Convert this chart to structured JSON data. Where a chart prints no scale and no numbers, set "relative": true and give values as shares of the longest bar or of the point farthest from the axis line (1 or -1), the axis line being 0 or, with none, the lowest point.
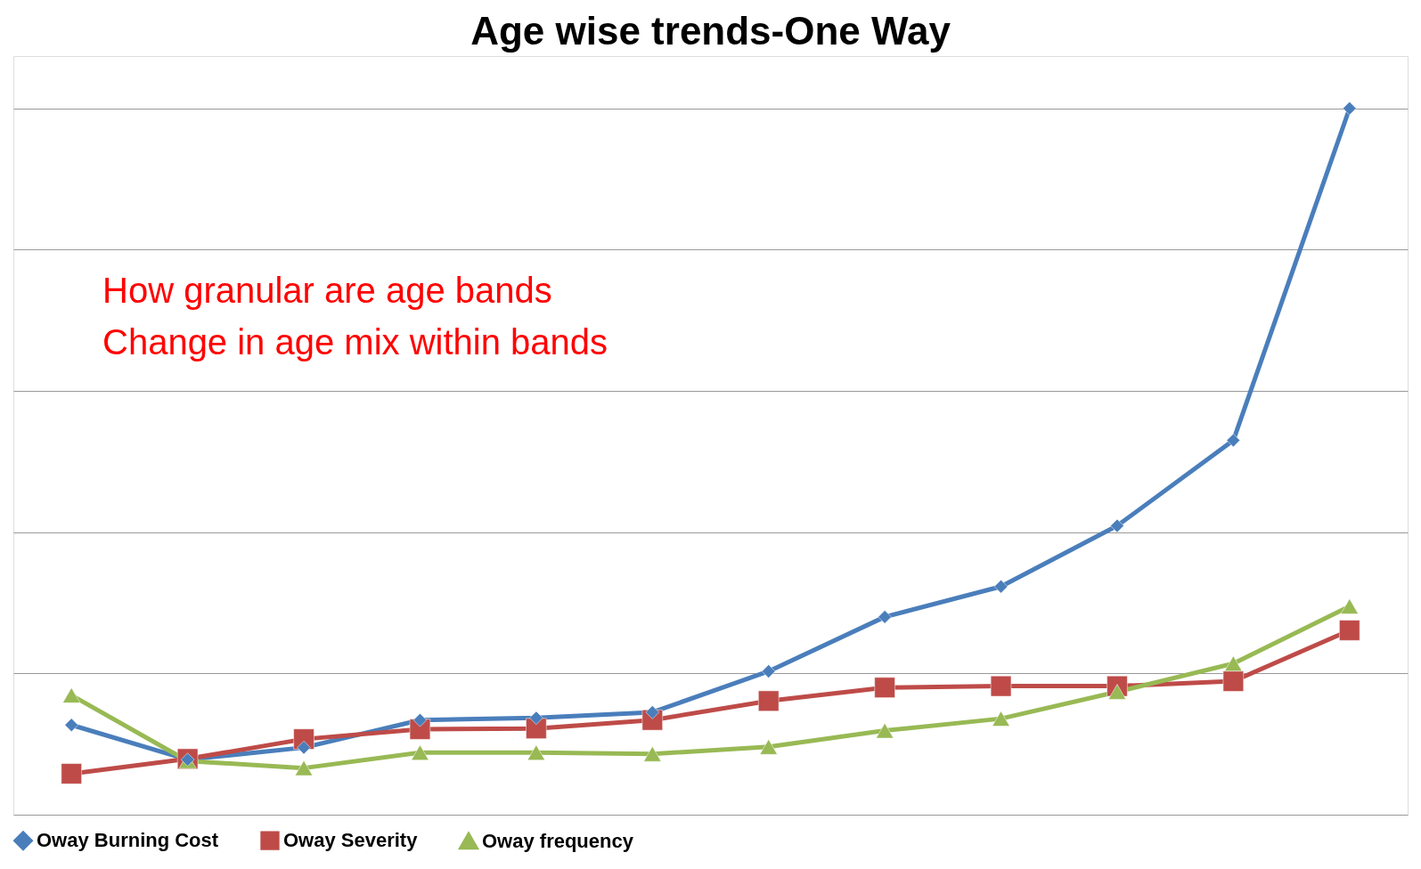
{
  "chart_data": {
    "type": "line",
    "title": "Age wise trends-One Way",
    "relative": true,
    "grid": "y",
    "legend": "bottom",
    "categories": [
      null,
      null,
      null,
      null,
      null,
      null,
      null,
      null,
      null,
      null,
      null,
      null
    ],
    "annotations": [
      "How granular are age bands",
      "Change in age mix within bands"
    ],
    "series": [
      {
        "name": "Oway Burning Cost",
        "color": "#4a7ebb",
        "marker": "diamond",
        "values": [
          0.127,
          0.078,
          0.095,
          0.134,
          0.137,
          0.145,
          0.203,
          0.28,
          0.323,
          0.409,
          0.53,
          1
        ]
      },
      {
        "name": "Oway Severity",
        "color": "#be4b48",
        "marker": "square",
        "values": [
          0.058,
          0.079,
          0.107,
          0.121,
          0.122,
          0.134,
          0.161,
          0.18,
          0.182,
          0.182,
          0.189,
          0.261
        ]
      },
      {
        "name": "Oway frequency",
        "color": "#98b954",
        "marker": "triangle",
        "values": [
          0.169,
          0.076,
          0.066,
          0.088,
          0.088,
          0.086,
          0.096,
          0.119,
          0.136,
          0.174,
          0.214,
          0.295
        ]
      }
    ]
  }
}
